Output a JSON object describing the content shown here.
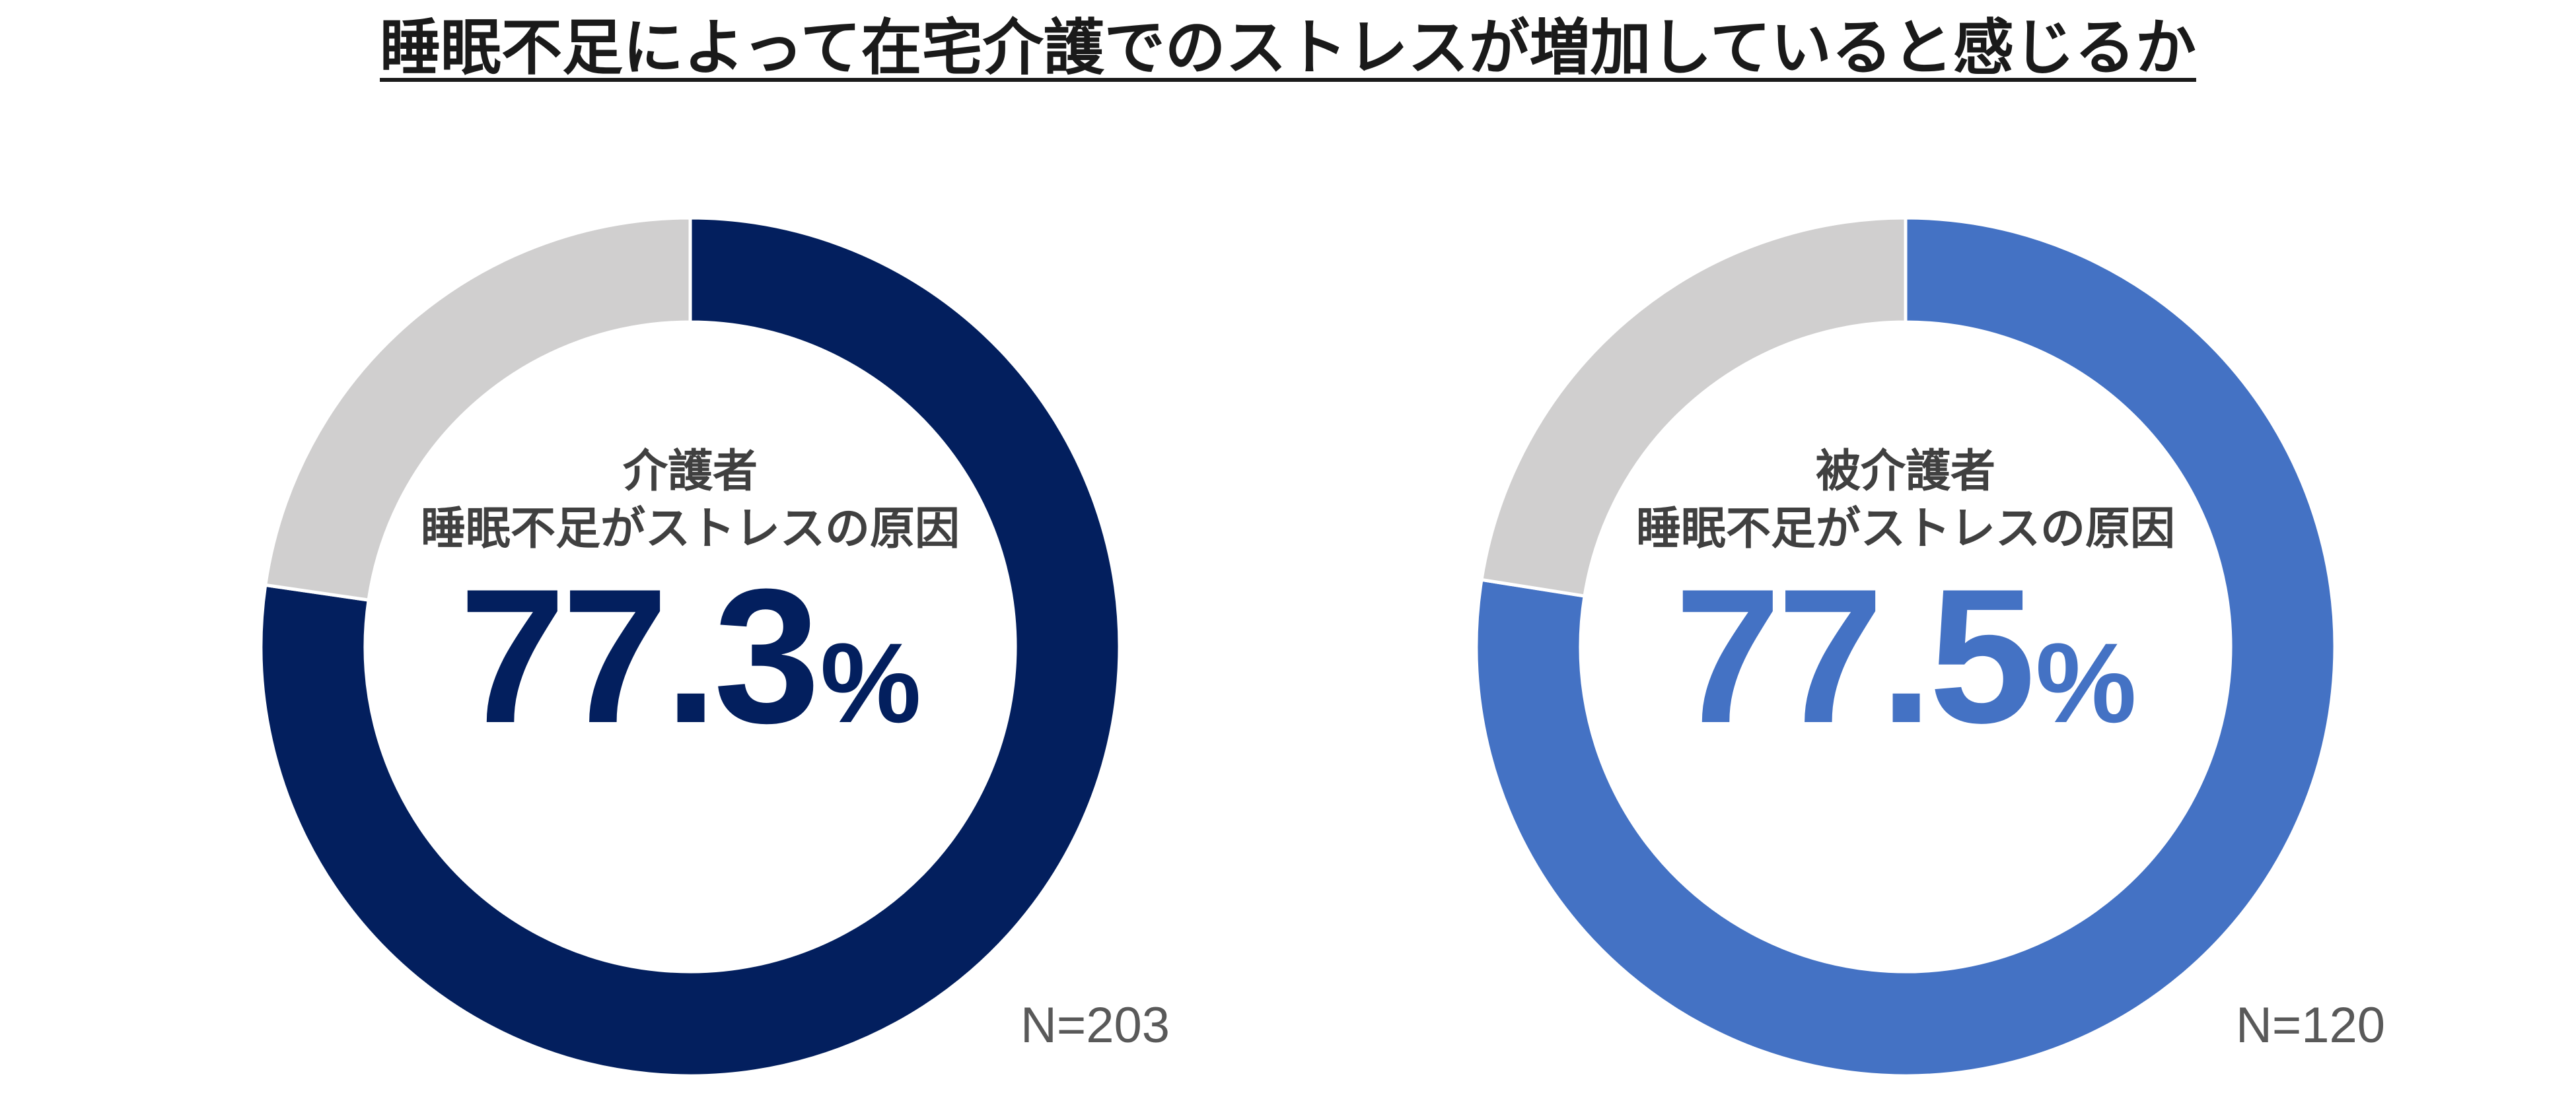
{
  "title": "睡眠不足によって在宅介護でのストレスが増加していると感じるか",
  "chart_data": [
    {
      "type": "pie",
      "style": "donut",
      "title": "",
      "center_label_line1": "介護者",
      "center_label_line2": "睡眠不足がストレスの原因",
      "value_text": "77.3",
      "percent_sign": "%",
      "n_label": "N=203",
      "slices": [
        {
          "value": 77.3,
          "color": "#031f5e"
        },
        {
          "value": 22.7,
          "color": "#d0cfcf"
        }
      ],
      "accent_color": "#031f5e"
    },
    {
      "type": "pie",
      "style": "donut",
      "title": "",
      "center_label_line1": "被介護者",
      "center_label_line2": "睡眠不足がストレスの原因",
      "value_text": "77.5",
      "percent_sign": "%",
      "n_label": "N=120",
      "slices": [
        {
          "value": 77.5,
          "color": "#4472c4"
        },
        {
          "value": 22.5,
          "color": "#d0cfcf"
        }
      ],
      "accent_color": "#4472c4"
    }
  ]
}
